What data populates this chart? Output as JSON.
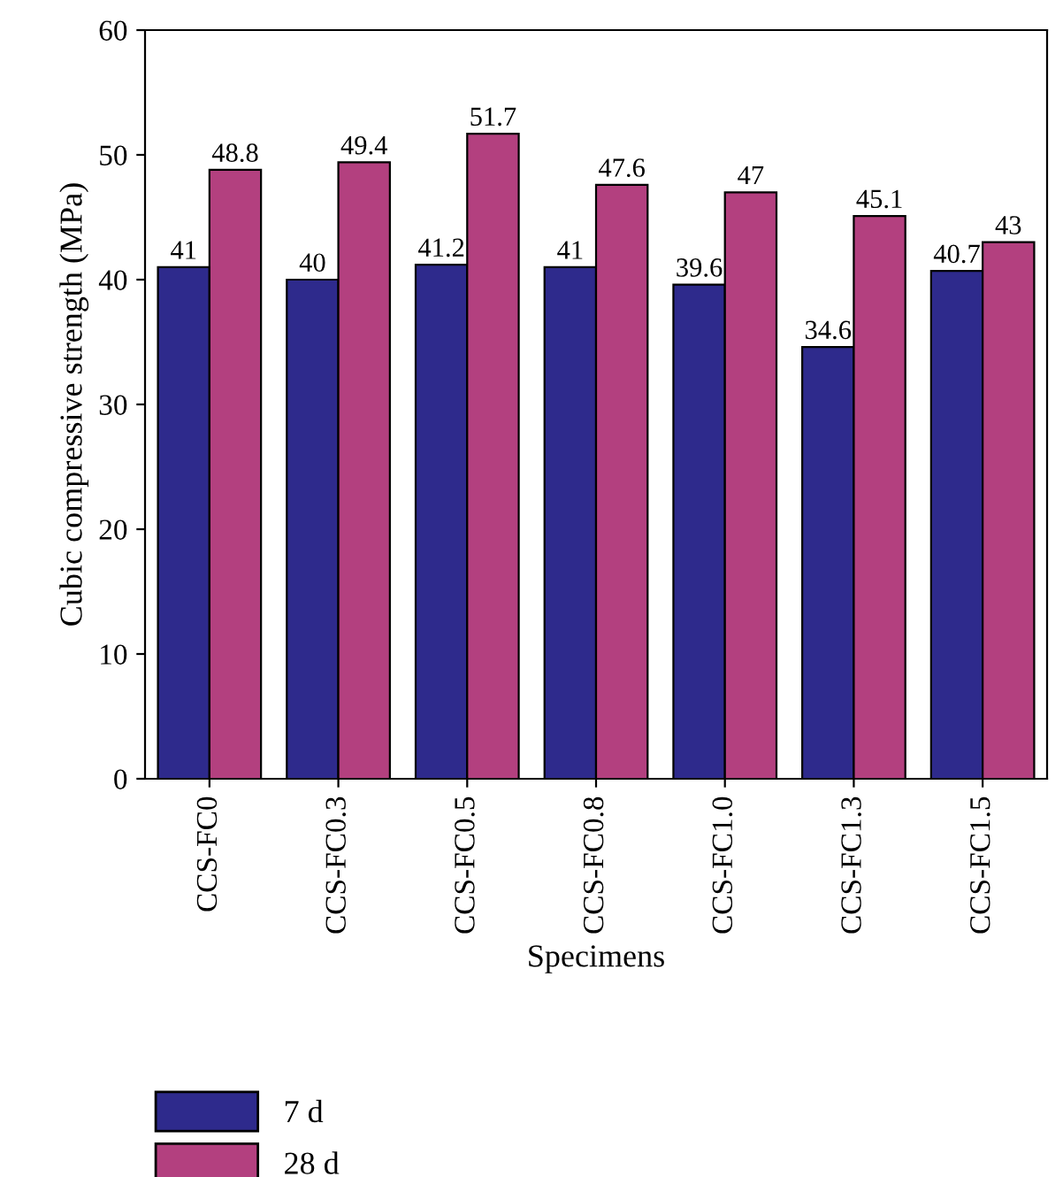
{
  "chart_data": {
    "type": "bar",
    "xlabel": "Specimens",
    "ylabel": "Cubic compressive strength (MPa)",
    "categories": [
      "CCS-FC0",
      "CCS-FC0.3",
      "CCS-FC0.5",
      "CCS-FC0.8",
      "CCS-FC1.0",
      "CCS-FC1.3",
      "CCS-FC1.5"
    ],
    "series": [
      {
        "name": "7 d",
        "color": "#2e2a8c",
        "values": [
          41,
          40,
          41.2,
          41,
          39.6,
          34.6,
          40.7
        ]
      },
      {
        "name": "28 d",
        "color": "#b3407f",
        "values": [
          48.8,
          49.4,
          51.7,
          47.6,
          47,
          45.1,
          43
        ]
      }
    ],
    "ylim": [
      0,
      60
    ],
    "yticks": [
      0,
      10,
      20,
      30,
      40,
      50,
      60
    ],
    "data_labels": true,
    "grid": false,
    "legend": "bottom left"
  }
}
